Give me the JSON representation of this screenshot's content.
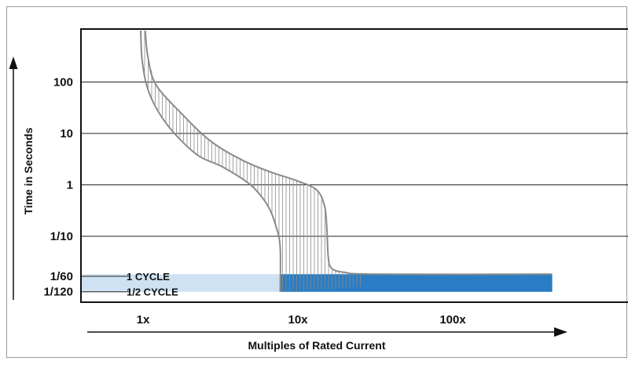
{
  "chart_data": {
    "type": "line",
    "title": "",
    "xlabel": "Multiples of Rated Current",
    "ylabel": "Time in Seconds",
    "x_scale": "log",
    "y_scale": "log",
    "x_ticks": [
      {
        "value": 1,
        "label": "1x"
      },
      {
        "value": 10,
        "label": "10x"
      },
      {
        "value": 100,
        "label": "100x"
      }
    ],
    "y_ticks": [
      {
        "value": 100,
        "label": "100"
      },
      {
        "value": 10,
        "label": "10"
      },
      {
        "value": 1,
        "label": "1"
      },
      {
        "value": 0.1,
        "label": "1/10"
      },
      {
        "value": 0.016667,
        "label": "1/60"
      },
      {
        "value": 0.008333,
        "label": "1/120"
      }
    ],
    "annotations": [
      {
        "y": 0.016667,
        "label": "1 CYCLE"
      },
      {
        "y": 0.008333,
        "label": "1/2 CYCLE"
      }
    ],
    "grid": true,
    "series": [
      {
        "role": "minimum-trip",
        "x": [
          0.88,
          0.9,
          1.0,
          1.3,
          2.0,
          3.0,
          4.5,
          5.8,
          6.6,
          7.0,
          7.0
        ],
        "y": [
          1000,
          250,
          60,
          15,
          4,
          2.2,
          1.0,
          0.4,
          0.15,
          0.06,
          0.0083
        ]
      },
      {
        "role": "maximum-trip",
        "x": [
          0.94,
          0.98,
          1.1,
          1.6,
          2.5,
          4.0,
          6.0,
          9.0,
          12.0,
          13.5,
          14.0,
          14.3,
          15.0,
          18.0,
          30.0,
          400.0
        ],
        "y": [
          1000,
          300,
          90,
          25,
          7,
          3,
          1.8,
          1.2,
          0.8,
          0.4,
          0.15,
          0.04,
          0.024,
          0.02,
          0.0183,
          0.0183
        ]
      }
    ],
    "regions": [
      {
        "label": "",
        "x_range": [
          0.5,
          7.0
        ],
        "y_range": [
          0.0083,
          0.0183
        ],
        "color": "#cfe2f3"
      },
      {
        "label": "",
        "x_range": [
          7.0,
          400.0
        ],
        "y_range": [
          0.0083,
          0.0183
        ],
        "color": "#2a7dc4"
      }
    ],
    "colors": {
      "curve": "#8a8a8a",
      "hatch": "#8a8a8a",
      "grid": "#222222",
      "light_region": "#cfe2f3",
      "dark_region": "#2a7dc4"
    }
  }
}
